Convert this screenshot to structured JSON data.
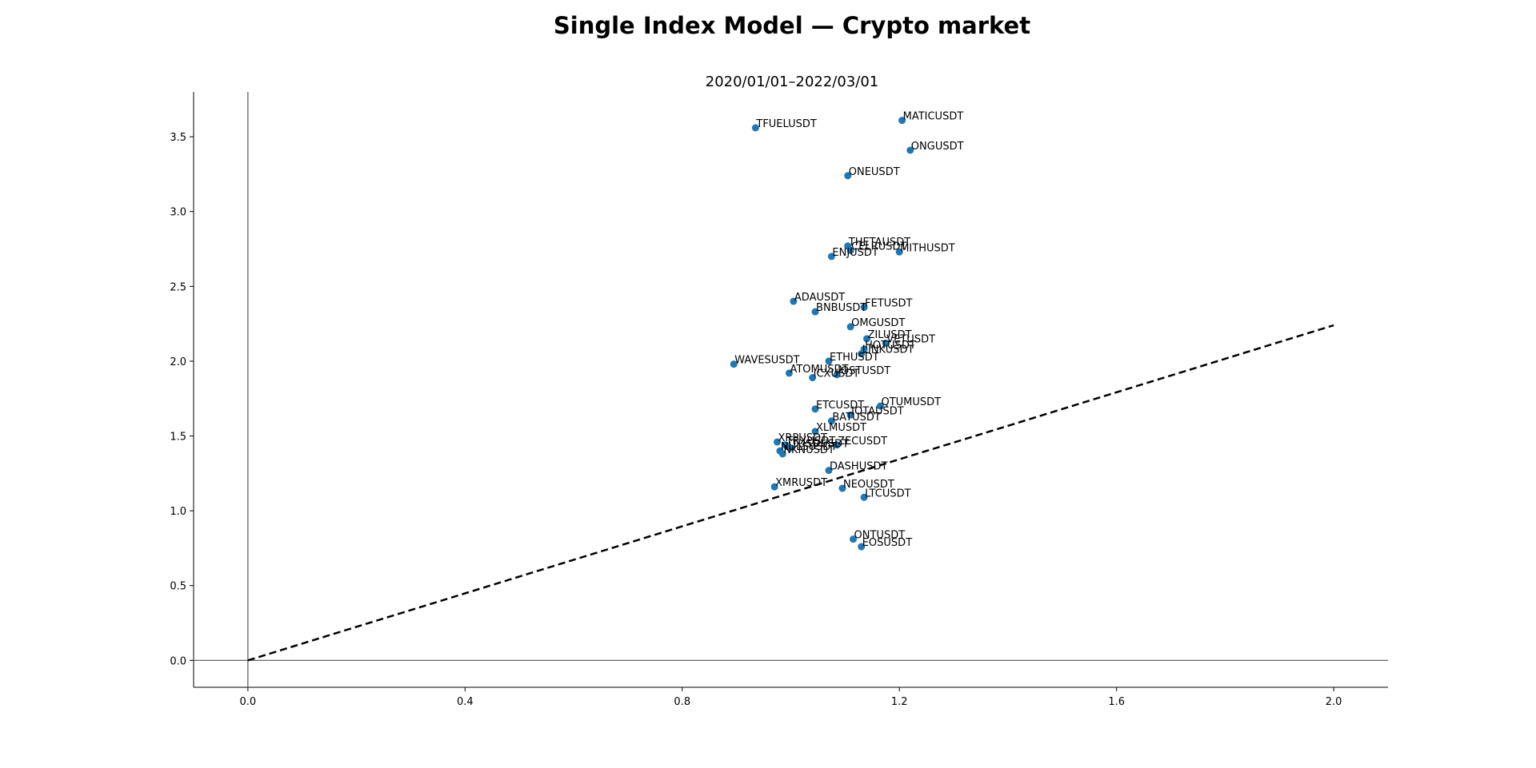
{
  "chart_data": {
    "type": "scatter",
    "title": "Single Index Model — Crypto market",
    "subtitle": "2020/01/01–2022/03/01",
    "xlabel": "",
    "ylabel": "",
    "xlim": [
      -0.1,
      2.1
    ],
    "ylim": [
      -0.18,
      3.8
    ],
    "x_ticks": [
      0.0,
      0.4,
      0.8,
      1.2,
      1.6,
      2.0
    ],
    "x_tick_labels": [
      "0.0",
      "0.4",
      "0.8",
      "1.2",
      "1.6",
      "2.0"
    ],
    "y_ticks": [
      0.0,
      0.5,
      1.0,
      1.5,
      2.0,
      2.5,
      3.0,
      3.5
    ],
    "y_tick_labels": [
      "0.0",
      "0.5",
      "1.0",
      "1.5",
      "2.0",
      "2.5",
      "3.0",
      "3.5"
    ],
    "grid": false,
    "reference_lines": [
      {
        "kind": "vertical",
        "x": 0.0,
        "color": "#555555"
      },
      {
        "kind": "horizontal",
        "y": 0.0,
        "color": "#555555"
      },
      {
        "kind": "dashed",
        "x": [
          0.0,
          2.0
        ],
        "y": [
          0.0,
          2.24
        ],
        "color": "#000000"
      }
    ],
    "marker_color": "#1f77b4",
    "points": [
      {
        "label": "MATICUSDT",
        "x": 1.205,
        "y": 3.61
      },
      {
        "label": "TFUELUSDT",
        "x": 0.935,
        "y": 3.56
      },
      {
        "label": "ONGUSDT",
        "x": 1.22,
        "y": 3.41
      },
      {
        "label": "ONEUSDT",
        "x": 1.105,
        "y": 3.24
      },
      {
        "label": "THETAUSDT",
        "x": 1.105,
        "y": 2.77
      },
      {
        "label": "CELRUSDT",
        "x": 1.11,
        "y": 2.74
      },
      {
        "label": "MITHUSDT",
        "x": 1.2,
        "y": 2.73
      },
      {
        "label": "ENJUSDT",
        "x": 1.075,
        "y": 2.7
      },
      {
        "label": "ADAUSDT",
        "x": 1.005,
        "y": 2.4
      },
      {
        "label": "FETUSDT",
        "x": 1.135,
        "y": 2.36
      },
      {
        "label": "BNBUSDT",
        "x": 1.045,
        "y": 2.33
      },
      {
        "label": "OMGUSDT",
        "x": 1.11,
        "y": 2.23
      },
      {
        "label": "ZILUSDT",
        "x": 1.14,
        "y": 2.15
      },
      {
        "label": "VETUSDT",
        "x": 1.175,
        "y": 2.12
      },
      {
        "label": "HOTUSDT",
        "x": 1.135,
        "y": 2.08
      },
      {
        "label": "LINKUSDT",
        "x": 1.13,
        "y": 2.05
      },
      {
        "label": "ETHUSDT",
        "x": 1.07,
        "y": 2.0
      },
      {
        "label": "WAVESUSDT",
        "x": 0.895,
        "y": 1.98
      },
      {
        "label": "ATOMUSDT",
        "x": 0.997,
        "y": 1.92
      },
      {
        "label": "IOSTUSDT",
        "x": 1.085,
        "y": 1.91
      },
      {
        "label": "ICXUSDT",
        "x": 1.04,
        "y": 1.89
      },
      {
        "label": "QTUMUSDT",
        "x": 1.165,
        "y": 1.7
      },
      {
        "label": "ETCUSDT",
        "x": 1.045,
        "y": 1.68
      },
      {
        "label": "IOTAUSDT",
        "x": 1.11,
        "y": 1.64
      },
      {
        "label": "BATUSDT",
        "x": 1.075,
        "y": 1.6
      },
      {
        "label": "XLMUSDT",
        "x": 1.045,
        "y": 1.53
      },
      {
        "label": "XRPUSDT",
        "x": 0.975,
        "y": 1.46
      },
      {
        "label": "TRXUSDT",
        "x": 0.99,
        "y": 1.44
      },
      {
        "label": "ZECUSDT",
        "x": 1.085,
        "y": 1.44
      },
      {
        "label": "TUSDUSDT",
        "x": 1.0,
        "y": 1.42
      },
      {
        "label": "NULSUSDT",
        "x": 0.98,
        "y": 1.4
      },
      {
        "label": "NKNUSDT",
        "x": 0.985,
        "y": 1.38
      },
      {
        "label": "DASHUSDT",
        "x": 1.07,
        "y": 1.27
      },
      {
        "label": "XMRUSDT",
        "x": 0.97,
        "y": 1.16
      },
      {
        "label": "NEOUSDT",
        "x": 1.095,
        "y": 1.15
      },
      {
        "label": "LTCUSDT",
        "x": 1.135,
        "y": 1.09
      },
      {
        "label": "ONTUSDT",
        "x": 1.115,
        "y": 0.81
      },
      {
        "label": "EOSUSDT",
        "x": 1.13,
        "y": 0.76
      }
    ]
  }
}
